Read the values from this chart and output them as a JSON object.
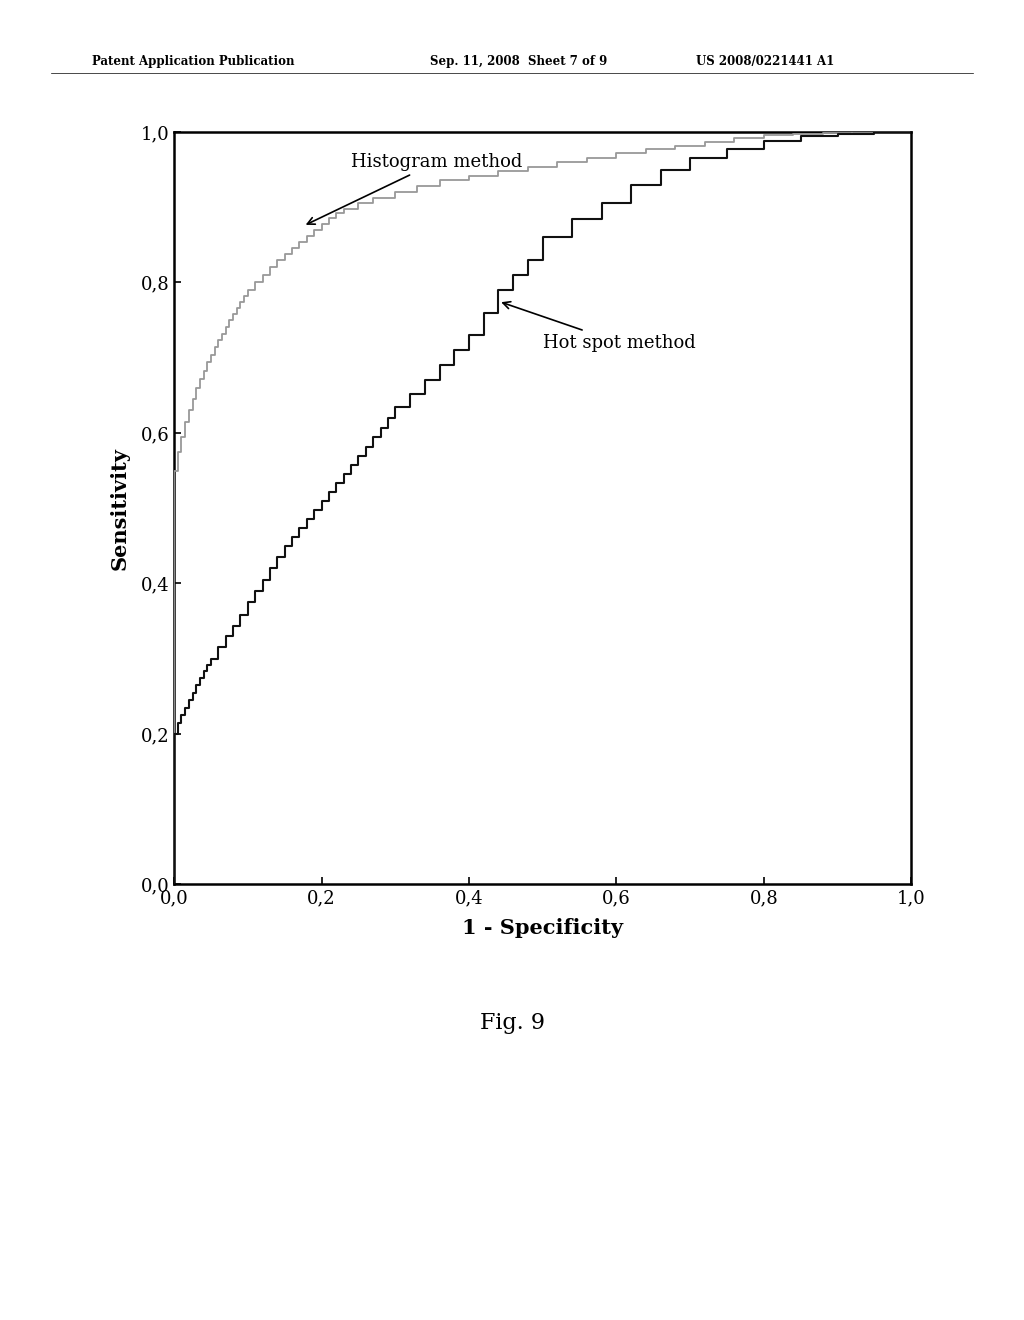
{
  "title": "",
  "xlabel": "1 - Specificity",
  "ylabel": "Sensitivity",
  "xlim": [
    0.0,
    1.0
  ],
  "ylim": [
    0.0,
    1.0
  ],
  "xticks": [
    0.0,
    0.2,
    0.4,
    0.6,
    0.8,
    1.0
  ],
  "yticks": [
    0.0,
    0.2,
    0.4,
    0.6,
    0.8,
    1.0
  ],
  "xtick_labels": [
    "0,0",
    "0,2",
    "0,4",
    "0,6",
    "0,8",
    "1,0"
  ],
  "ytick_labels": [
    "0,0",
    "0,2",
    "0,4",
    "0,6",
    "0,8",
    "1,0"
  ],
  "background_color": "#ffffff",
  "line_color_histogram": "#999999",
  "line_color_hotspot": "#111111",
  "header_left": "Patent Application Publication",
  "header_mid": "Sep. 11, 2008  Sheet 7 of 9",
  "header_right": "US 2008/0221441 A1",
  "fig_label": "Fig. 9",
  "annotation_histogram": "Histogram method",
  "annotation_hotspot": "Hot spot method",
  "histogram_x": [
    0.0,
    0.0,
    0.005,
    0.005,
    0.01,
    0.01,
    0.015,
    0.015,
    0.02,
    0.02,
    0.025,
    0.025,
    0.03,
    0.03,
    0.035,
    0.035,
    0.04,
    0.04,
    0.045,
    0.045,
    0.05,
    0.05,
    0.055,
    0.055,
    0.06,
    0.06,
    0.065,
    0.065,
    0.07,
    0.07,
    0.075,
    0.075,
    0.08,
    0.08,
    0.085,
    0.085,
    0.09,
    0.09,
    0.095,
    0.095,
    0.1,
    0.1,
    0.11,
    0.11,
    0.12,
    0.12,
    0.13,
    0.13,
    0.14,
    0.14,
    0.15,
    0.15,
    0.16,
    0.16,
    0.17,
    0.17,
    0.18,
    0.18,
    0.19,
    0.19,
    0.2,
    0.2,
    0.21,
    0.21,
    0.22,
    0.22,
    0.23,
    0.23,
    0.25,
    0.25,
    0.27,
    0.27,
    0.3,
    0.3,
    0.33,
    0.33,
    0.36,
    0.36,
    0.4,
    0.4,
    0.44,
    0.44,
    0.48,
    0.48,
    0.52,
    0.52,
    0.56,
    0.56,
    0.6,
    0.6,
    0.64,
    0.64,
    0.68,
    0.68,
    0.72,
    0.72,
    0.76,
    0.76,
    0.8,
    0.8,
    0.84,
    0.84,
    0.88,
    0.88,
    0.92,
    0.92,
    0.96,
    0.96,
    1.0,
    1.0
  ],
  "histogram_y": [
    0.0,
    0.55,
    0.55,
    0.575,
    0.575,
    0.595,
    0.595,
    0.615,
    0.615,
    0.63,
    0.63,
    0.645,
    0.645,
    0.66,
    0.66,
    0.672,
    0.672,
    0.683,
    0.683,
    0.694,
    0.694,
    0.704,
    0.704,
    0.714,
    0.714,
    0.723,
    0.723,
    0.732,
    0.732,
    0.741,
    0.741,
    0.75,
    0.75,
    0.758,
    0.758,
    0.766,
    0.766,
    0.774,
    0.774,
    0.782,
    0.782,
    0.79,
    0.79,
    0.8,
    0.8,
    0.81,
    0.81,
    0.82,
    0.82,
    0.83,
    0.83,
    0.838,
    0.838,
    0.846,
    0.846,
    0.854,
    0.854,
    0.862,
    0.862,
    0.87,
    0.87,
    0.878,
    0.878,
    0.886,
    0.886,
    0.892,
    0.892,
    0.898,
    0.898,
    0.905,
    0.905,
    0.912,
    0.912,
    0.92,
    0.92,
    0.928,
    0.928,
    0.936,
    0.936,
    0.942,
    0.942,
    0.948,
    0.948,
    0.954,
    0.954,
    0.96,
    0.96,
    0.966,
    0.966,
    0.972,
    0.972,
    0.977,
    0.977,
    0.982,
    0.982,
    0.987,
    0.987,
    0.992,
    0.992,
    0.996,
    0.996,
    0.998,
    0.998,
    0.999,
    0.999,
    1.0,
    1.0,
    1.0,
    1.0,
    1.0
  ],
  "hotspot_x": [
    0.0,
    0.0,
    0.005,
    0.005,
    0.01,
    0.01,
    0.015,
    0.015,
    0.02,
    0.02,
    0.025,
    0.025,
    0.03,
    0.03,
    0.035,
    0.035,
    0.04,
    0.04,
    0.045,
    0.045,
    0.05,
    0.05,
    0.06,
    0.06,
    0.07,
    0.07,
    0.08,
    0.08,
    0.09,
    0.09,
    0.1,
    0.1,
    0.11,
    0.11,
    0.12,
    0.12,
    0.13,
    0.13,
    0.14,
    0.14,
    0.15,
    0.15,
    0.16,
    0.16,
    0.17,
    0.17,
    0.18,
    0.18,
    0.19,
    0.19,
    0.2,
    0.2,
    0.21,
    0.21,
    0.22,
    0.22,
    0.23,
    0.23,
    0.24,
    0.24,
    0.25,
    0.25,
    0.26,
    0.26,
    0.27,
    0.27,
    0.28,
    0.28,
    0.29,
    0.29,
    0.3,
    0.3,
    0.32,
    0.32,
    0.34,
    0.34,
    0.36,
    0.36,
    0.38,
    0.38,
    0.4,
    0.4,
    0.42,
    0.42,
    0.44,
    0.44,
    0.46,
    0.46,
    0.48,
    0.48,
    0.5,
    0.5,
    0.54,
    0.54,
    0.58,
    0.58,
    0.62,
    0.62,
    0.66,
    0.66,
    0.7,
    0.7,
    0.75,
    0.75,
    0.8,
    0.8,
    0.85,
    0.85,
    0.9,
    0.9,
    0.95,
    0.95,
    1.0,
    1.0
  ],
  "hotspot_y": [
    0.0,
    0.2,
    0.2,
    0.215,
    0.215,
    0.225,
    0.225,
    0.235,
    0.235,
    0.245,
    0.245,
    0.255,
    0.255,
    0.265,
    0.265,
    0.274,
    0.274,
    0.283,
    0.283,
    0.292,
    0.292,
    0.3,
    0.3,
    0.315,
    0.315,
    0.33,
    0.33,
    0.344,
    0.344,
    0.358,
    0.358,
    0.375,
    0.375,
    0.39,
    0.39,
    0.405,
    0.405,
    0.42,
    0.42,
    0.435,
    0.435,
    0.45,
    0.45,
    0.462,
    0.462,
    0.474,
    0.474,
    0.486,
    0.486,
    0.498,
    0.498,
    0.51,
    0.51,
    0.522,
    0.522,
    0.534,
    0.534,
    0.546,
    0.546,
    0.558,
    0.558,
    0.57,
    0.57,
    0.582,
    0.582,
    0.594,
    0.594,
    0.606,
    0.606,
    0.62,
    0.62,
    0.635,
    0.635,
    0.652,
    0.652,
    0.67,
    0.67,
    0.69,
    0.69,
    0.71,
    0.71,
    0.73,
    0.73,
    0.76,
    0.76,
    0.79,
    0.79,
    0.81,
    0.81,
    0.83,
    0.83,
    0.86,
    0.86,
    0.885,
    0.885,
    0.905,
    0.905,
    0.93,
    0.93,
    0.95,
    0.95,
    0.965,
    0.965,
    0.978,
    0.978,
    0.988,
    0.988,
    0.995,
    0.995,
    0.998,
    0.998,
    1.0,
    1.0,
    1.0
  ]
}
